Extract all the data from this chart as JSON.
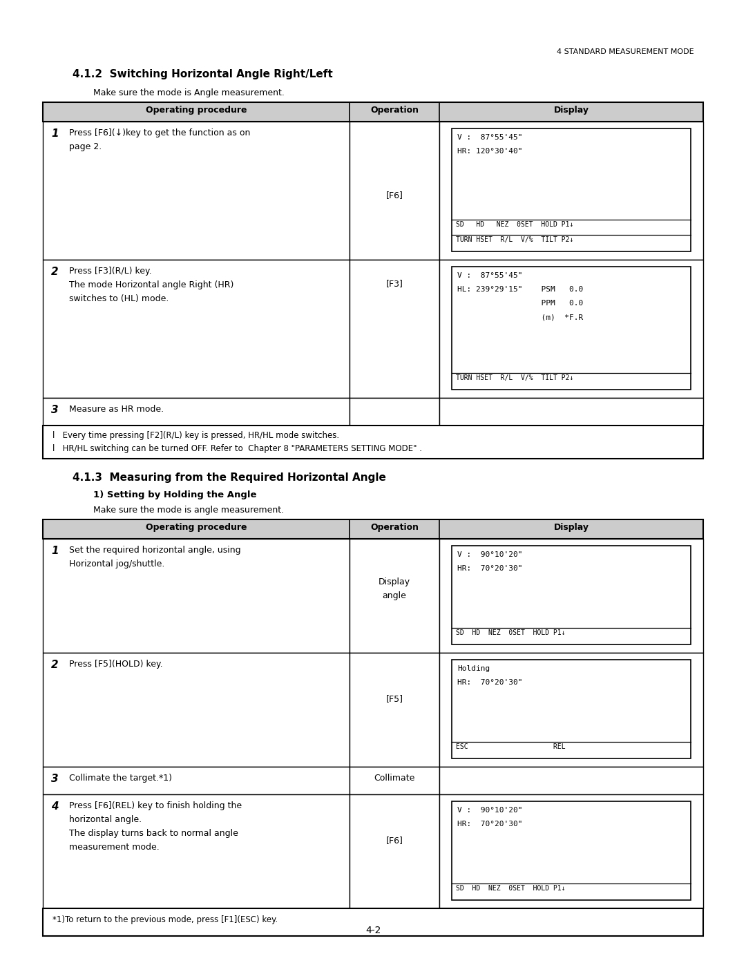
{
  "page_header": "4 STANDARD MEASUREMENT MODE",
  "page_number": "4-2",
  "section1_title": "4.1.2  Switching Horizontal Angle Right/Left",
  "section1_subtitle": "Make sure the mode is Angle measurement.",
  "table1_notes": [
    "l   Every time pressing [F2](R/L) key is pressed, HR/HL mode switches.",
    "l   HR/HL switching can be turned OFF. Refer to  Chapter 8 \"PARAMETERS SETTING MODE\" ."
  ],
  "section2_title": "4.1.3  Measuring from the Required Horizontal Angle",
  "section2_subtitle1": "1) Setting by Holding the Angle",
  "section2_subtitle2": "Make sure the mode is angle measurement.",
  "table2_note": "*1)To return to the previous mode, press [F1](ESC) key.",
  "bg_color": "#ffffff"
}
